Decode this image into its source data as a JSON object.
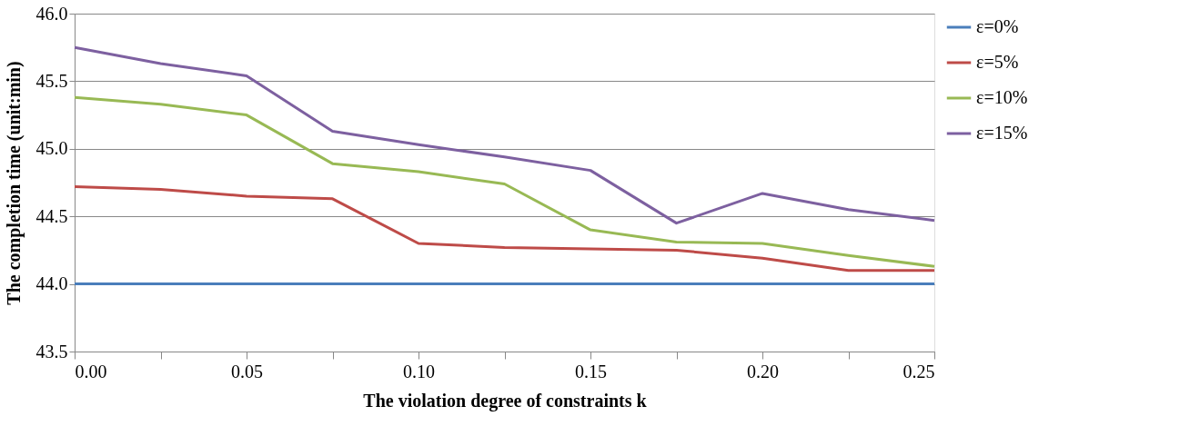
{
  "chart_data": {
    "type": "line",
    "xlabel": "The violation degree of constraints k",
    "ylabel": "The completion time (unit:min)",
    "x": [
      0,
      0.025,
      0.05,
      0.075,
      0.1,
      0.125,
      0.15,
      0.175,
      0.2,
      0.225,
      0.25
    ],
    "series": [
      {
        "name": "ε=0%",
        "color": "#4a7ebb",
        "values": [
          44.0,
          44.0,
          44.0,
          44.0,
          44.0,
          44.0,
          44.0,
          44.0,
          44.0,
          44.0,
          44.0
        ]
      },
      {
        "name": "ε=5%",
        "color": "#be4b48",
        "values": [
          44.72,
          44.7,
          44.65,
          44.63,
          44.3,
          44.27,
          44.26,
          44.25,
          44.19,
          44.1,
          44.1
        ]
      },
      {
        "name": "ε=10%",
        "color": "#98b954",
        "values": [
          45.38,
          45.33,
          45.25,
          44.89,
          44.83,
          44.74,
          44.4,
          44.31,
          44.3,
          44.21,
          44.13
        ]
      },
      {
        "name": "ε=15%",
        "color": "#7d60a0",
        "values": [
          45.75,
          45.63,
          45.54,
          45.13,
          45.03,
          44.94,
          44.84,
          44.45,
          44.67,
          44.55,
          44.47
        ]
      }
    ],
    "xlim": [
      0,
      0.25
    ],
    "xticks": [
      {
        "value": 0,
        "label": "0.00"
      },
      {
        "value": 0.025,
        "label": null
      },
      {
        "value": 0.05,
        "label": "0.05"
      },
      {
        "value": 0.075,
        "label": null
      },
      {
        "value": 0.1,
        "label": "0.10"
      },
      {
        "value": 0.125,
        "label": null
      },
      {
        "value": 0.15,
        "label": "0.15"
      },
      {
        "value": 0.175,
        "label": null
      },
      {
        "value": 0.2,
        "label": "0.20"
      },
      {
        "value": 0.225,
        "label": null
      },
      {
        "value": 0.25,
        "label": "0.25"
      }
    ],
    "ylim": [
      43.5,
      46.0
    ],
    "yticks": [
      {
        "value": 43.5,
        "label": "43.5"
      },
      {
        "value": 44.0,
        "label": "44.0"
      },
      {
        "value": 44.5,
        "label": "44.5"
      },
      {
        "value": 45.0,
        "label": "45.0"
      },
      {
        "value": 45.5,
        "label": "45.5"
      },
      {
        "value": 46.0,
        "label": "46.0"
      }
    ],
    "grid": "y",
    "legend": "right",
    "marker": "none",
    "line_style": "solid"
  }
}
